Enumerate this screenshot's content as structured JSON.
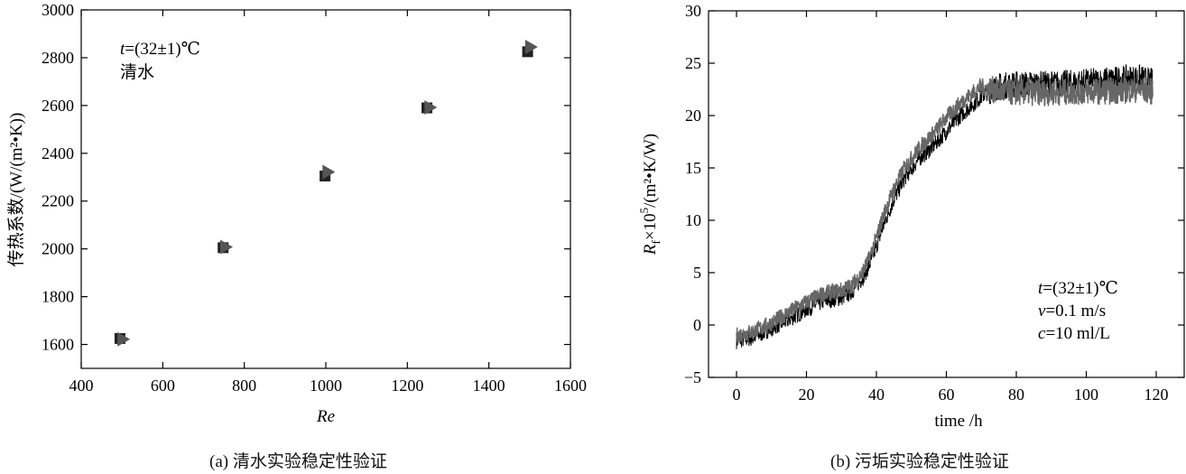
{
  "chart_data": [
    {
      "type": "scatter",
      "xlabel": "Re",
      "ylabel": "传热系数/(W/(m²•K))",
      "xlim": [
        400,
        1600
      ],
      "ylim": [
        1500,
        3000
      ],
      "xticks": [
        400,
        600,
        800,
        1000,
        1200,
        1400,
        1600
      ],
      "yticks": [
        1600,
        1800,
        2000,
        2200,
        2400,
        2600,
        2800,
        3000
      ],
      "grid": false,
      "annotation_lines": [
        "t=(32±1)℃",
        "清水"
      ],
      "series": [
        {
          "marker": "square",
          "color": "#222222",
          "x": [
            495,
            748,
            998,
            1248,
            1495
          ],
          "y": [
            1625,
            2005,
            2305,
            2590,
            2825
          ]
        },
        {
          "marker": "triangle-right",
          "color": "#555555",
          "x": [
            500,
            752,
            1003,
            1253,
            1500
          ],
          "y": [
            1622,
            2008,
            2322,
            2592,
            2845
          ]
        }
      ],
      "caption": "(a)  清水实验稳定性验证"
    },
    {
      "type": "line",
      "xlabel": "time /h",
      "ylabel": "R_f×10^5/(m²•K/W)",
      "xlim": [
        -8,
        128
      ],
      "ylim": [
        -5,
        30
      ],
      "xticks": [
        0,
        20,
        40,
        60,
        80,
        100,
        120
      ],
      "yticks": [
        -5,
        0,
        5,
        10,
        15,
        20,
        25,
        30
      ],
      "grid": false,
      "annotation_lines": [
        "t=(32±1)℃",
        "v=0.1 m/s",
        "c=10 ml/L"
      ],
      "series": [
        {
          "color": "#000000",
          "x": [
            0,
            5,
            10,
            15,
            20,
            25,
            30,
            33,
            36,
            38,
            40,
            42,
            45,
            48,
            52,
            56,
            60,
            64,
            68,
            70,
            72,
            75,
            80,
            90,
            100,
            110,
            115,
            119
          ],
          "y": [
            -1.5,
            -1.2,
            -0.3,
            0.5,
            1.5,
            2.3,
            2.6,
            3.2,
            4.5,
            5.7,
            7.5,
            9.5,
            12.0,
            14.0,
            15.8,
            17.0,
            18.5,
            20.0,
            21.2,
            21.8,
            22.3,
            22.8,
            23.0,
            23.0,
            23.2,
            23.5,
            23.6,
            23.2
          ]
        },
        {
          "color": "#666666",
          "x": [
            0,
            5,
            10,
            15,
            20,
            25,
            30,
            33,
            36,
            38,
            40,
            42,
            45,
            48,
            52,
            56,
            60,
            64,
            68,
            70,
            72,
            75,
            80,
            90,
            100,
            110,
            115,
            119
          ],
          "y": [
            -1.0,
            -0.6,
            0.2,
            1.2,
            2.2,
            3.0,
            3.3,
            3.8,
            5.0,
            6.4,
            8.3,
            10.5,
            13.0,
            15.0,
            16.8,
            18.2,
            19.8,
            21.2,
            22.3,
            22.8,
            22.6,
            22.3,
            22.2,
            22.2,
            22.3,
            22.4,
            22.5,
            22.3
          ]
        }
      ],
      "caption": "(b)  污垢实验稳定性验证"
    }
  ]
}
